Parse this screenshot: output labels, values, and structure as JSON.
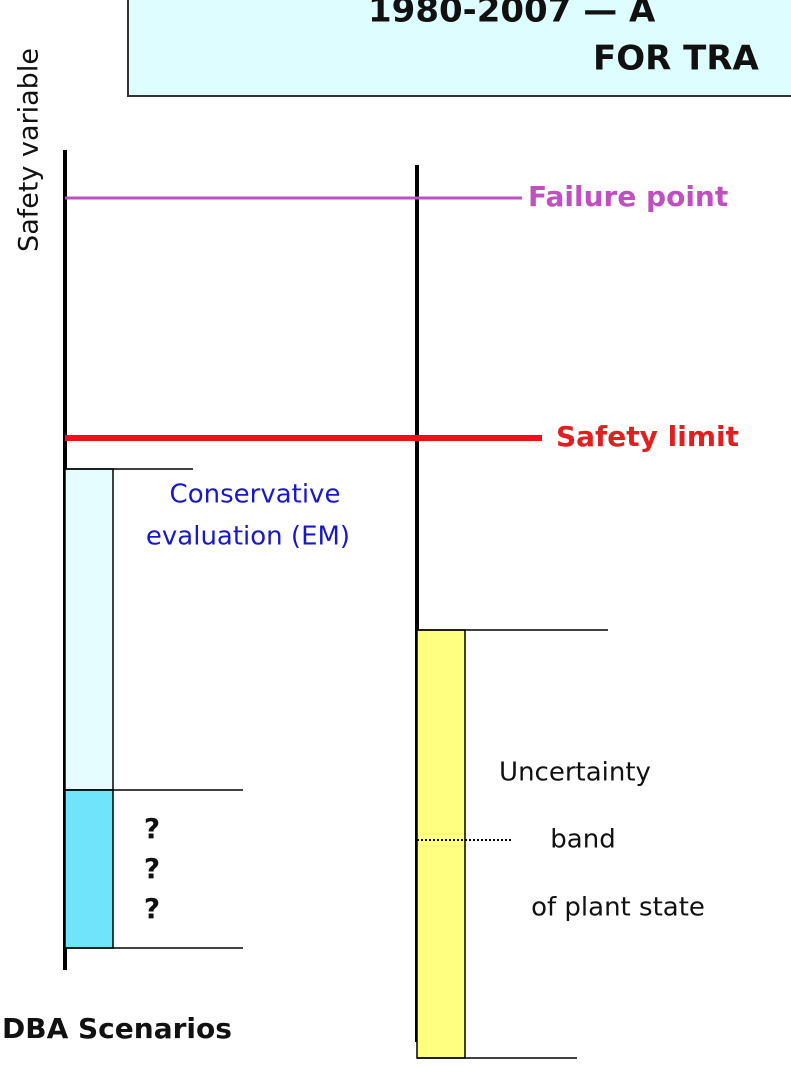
{
  "title": {
    "lines": [
      "1980-2007 — A",
      "FOR TRA"
    ]
  },
  "axis_label": "Safety variable",
  "levels": {
    "failure_point": "Failure point",
    "safety_limit": "Safety limit"
  },
  "conservative": {
    "lines": [
      "Conservative",
      "evaluation (EM)"
    ],
    "unknowns": [
      "?",
      "?",
      "?"
    ]
  },
  "uncertainty": {
    "lines": [
      "Uncertainty",
      "band",
      "of plant state"
    ]
  },
  "footer": "DBA Scenarios"
}
